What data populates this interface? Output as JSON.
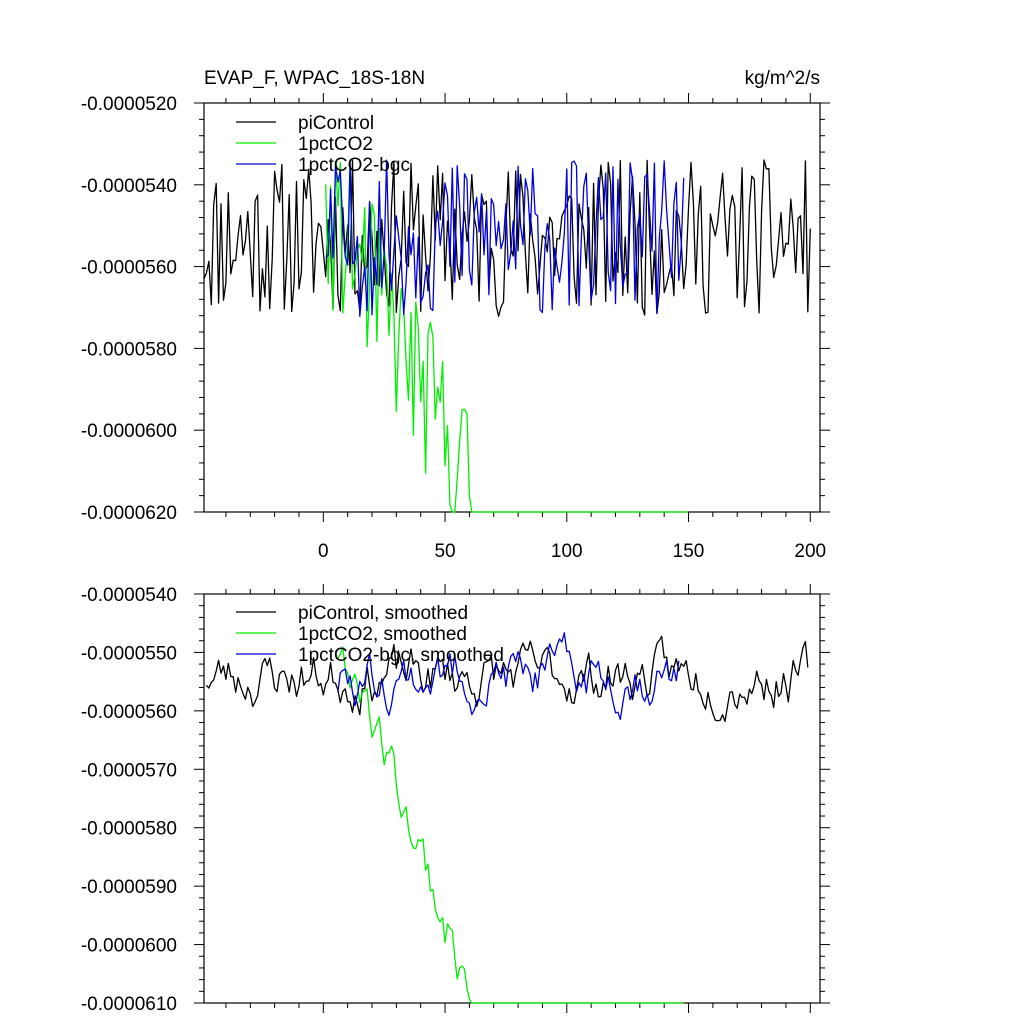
{
  "chart_data": [
    {
      "type": "line",
      "title": "EVAP_F, WPAC_18S-18N",
      "units": "kg/m^2/s",
      "xlim": [
        -49,
        204
      ],
      "ylim": [
        -6.2e-05,
        -5.2e-05
      ],
      "xticks": [
        0,
        50,
        100,
        150,
        200
      ],
      "xtick_labels": [
        "0",
        "50",
        "100",
        "150",
        "200"
      ],
      "yticks": [
        -5.2e-05,
        -5.4e-05,
        -5.6e-05,
        -5.8e-05,
        -6e-05,
        -6.2e-05
      ],
      "ytick_labels": [
        "-0.0000520",
        "-0.0000540",
        "-0.0000560",
        "-0.0000580",
        "-0.0000600",
        "-0.0000620"
      ],
      "legend_position": "top-left",
      "series": [
        {
          "name": "piControl",
          "color": "#000000",
          "x_start": -49,
          "x_end": 200,
          "mean": -5.53e-05,
          "trend": 0,
          "noise": 1.2e-06
        },
        {
          "name": "1pctCO2",
          "color": "#00ee00",
          "x_start": 1,
          "x_end": 150,
          "mean": -5.53e-05,
          "trend": -4e-07,
          "noise": 1.3e-06
        },
        {
          "name": "1pctCO2-bgc",
          "color": "#0000dd",
          "x_start": 1,
          "x_end": 148,
          "mean": -5.53e-05,
          "trend": 0,
          "noise": 1.2e-06
        }
      ]
    },
    {
      "type": "line",
      "title": "",
      "units": "",
      "xlim": [
        -49,
        204
      ],
      "ylim": [
        -6.1e-05,
        -5.4e-05
      ],
      "xticks": [
        0,
        50,
        100,
        150,
        200
      ],
      "xtick_labels": [],
      "yticks": [
        -5.4e-05,
        -5.5e-05,
        -5.6e-05,
        -5.7e-05,
        -5.8e-05,
        -5.9e-05,
        -6e-05,
        -6.1e-05
      ],
      "ytick_labels": [
        "-0.0000540",
        "-0.0000550",
        "-0.0000560",
        "-0.0000570",
        "-0.0000580",
        "-0.0000590",
        "-0.0000600",
        "-0.0000610"
      ],
      "legend_position": "top-left",
      "series": [
        {
          "name": "piControl, smoothed",
          "color": "#000000",
          "x_start": -48,
          "x_end": 199,
          "mean": -5.54e-05,
          "trend": 0,
          "noise": 3.2e-07
        },
        {
          "name": "1pctCO2, smoothed",
          "color": "#00ee00",
          "x_start": 6,
          "x_end": 148,
          "mean": -5.54e-05,
          "trend": -4e-07,
          "noise": 3.5e-07
        },
        {
          "name": "1pctCO2-bgc, smoothed",
          "color": "#0000dd",
          "x_start": 6,
          "x_end": 146,
          "mean": -5.54e-05,
          "trend": 0,
          "noise": 3.2e-07
        }
      ]
    }
  ]
}
